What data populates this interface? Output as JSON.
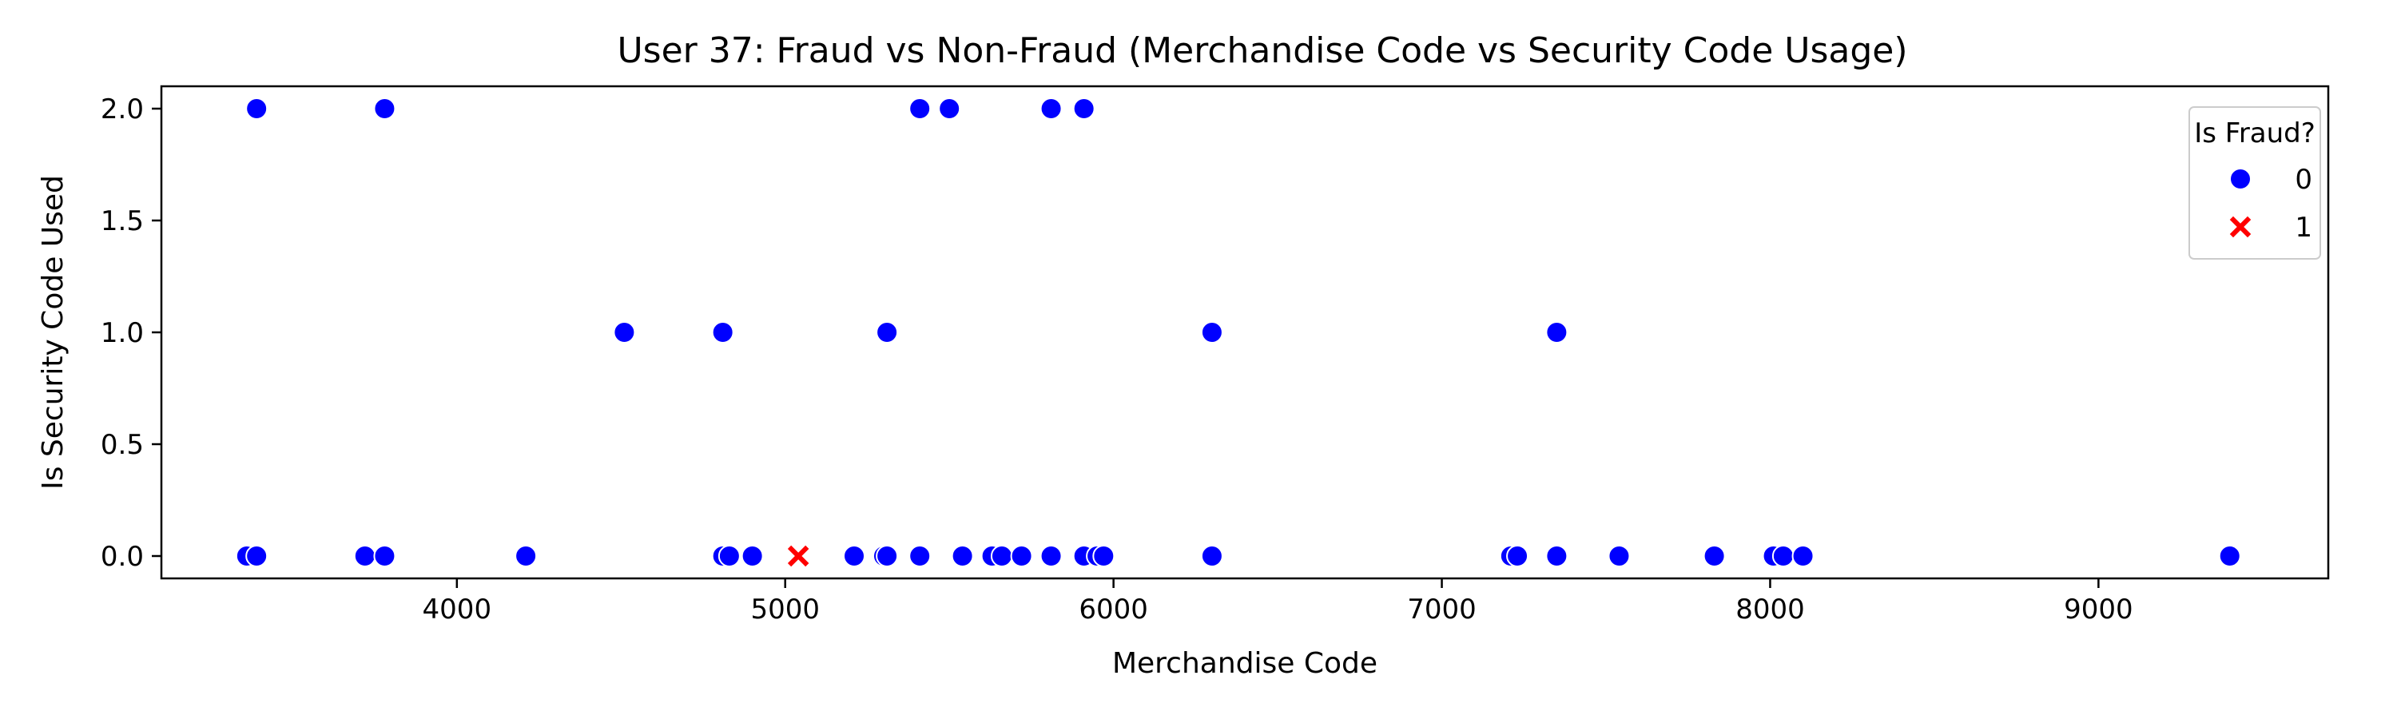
{
  "chart_data": {
    "type": "scatter",
    "title": "User 37: Fraud vs Non-Fraud (Merchandise Code vs Security Code Usage)",
    "xlabel": "Merchandise Code",
    "ylabel": "Is Security Code Used",
    "xlim": [
      3100,
      9700
    ],
    "ylim": [
      -0.1,
      2.1
    ],
    "xticks": [
      4000,
      5000,
      6000,
      7000,
      8000,
      9000
    ],
    "xtick_labels": [
      "4000",
      "5000",
      "6000",
      "7000",
      "8000",
      "9000"
    ],
    "yticks": [
      0.0,
      0.5,
      1.0,
      1.5,
      2.0
    ],
    "ytick_labels": [
      "0.0",
      "0.5",
      "1.0",
      "1.5",
      "2.0"
    ],
    "grid": false,
    "legend": {
      "title": "Is Fraud?",
      "placement": "top-right"
    },
    "series": [
      {
        "name": "0",
        "marker": "circle",
        "color": "#0000ff",
        "points": [
          [
            3390,
            2
          ],
          [
            3780,
            2
          ],
          [
            5410,
            2
          ],
          [
            5500,
            2
          ],
          [
            5810,
            2
          ],
          [
            5910,
            2
          ],
          [
            4510,
            1
          ],
          [
            4810,
            1
          ],
          [
            5310,
            1
          ],
          [
            6300,
            1
          ],
          [
            7350,
            1
          ],
          [
            3360,
            0
          ],
          [
            3390,
            0
          ],
          [
            3720,
            0
          ],
          [
            3780,
            0
          ],
          [
            4210,
            0
          ],
          [
            4810,
            0
          ],
          [
            4830,
            0
          ],
          [
            4900,
            0
          ],
          [
            5210,
            0
          ],
          [
            5300,
            0
          ],
          [
            5310,
            0
          ],
          [
            5410,
            0
          ],
          [
            5540,
            0
          ],
          [
            5630,
            0
          ],
          [
            5660,
            0
          ],
          [
            5720,
            0
          ],
          [
            5810,
            0
          ],
          [
            5910,
            0
          ],
          [
            5950,
            0
          ],
          [
            5970,
            0
          ],
          [
            6300,
            0
          ],
          [
            7210,
            0
          ],
          [
            7230,
            0
          ],
          [
            7350,
            0
          ],
          [
            7540,
            0
          ],
          [
            7830,
            0
          ],
          [
            8010,
            0
          ],
          [
            8040,
            0
          ],
          [
            8100,
            0
          ],
          [
            9400,
            0
          ]
        ]
      },
      {
        "name": "1",
        "marker": "x",
        "color": "#ff0000",
        "points": [
          [
            5040,
            0
          ]
        ]
      }
    ]
  }
}
